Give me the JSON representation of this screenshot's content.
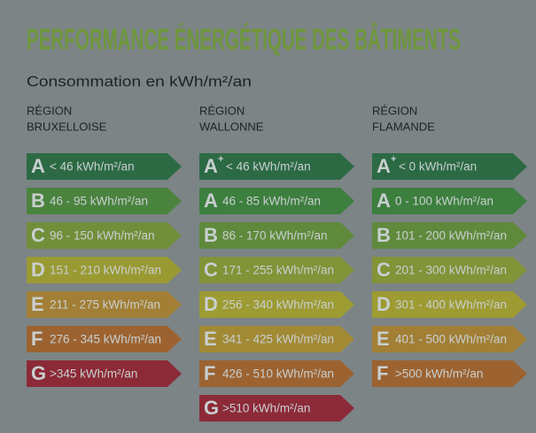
{
  "header": {
    "title": "PERFORMANCE ÉNERGÉTIQUE DES BÂTIMENTS",
    "subtitle": "Consommation en kWh/m²/an"
  },
  "columns": [
    {
      "region": [
        "RÉGION",
        "BRUXELLOISE"
      ],
      "rows": [
        {
          "letter": "A",
          "label": "< 46 kWh/m²/an",
          "color": "#2c6a44"
        },
        {
          "letter": "B",
          "label": "46 - 95 kWh/m²/an",
          "color": "#4a833e"
        },
        {
          "letter": "C",
          "label": "96 - 150 kWh/m²/an",
          "color": "#718f3a"
        },
        {
          "letter": "D",
          "label": "151 - 210 kWh/m²/an",
          "color": "#9a9a33"
        },
        {
          "letter": "E",
          "label": "211 - 275 kWh/m²/an",
          "color": "#a27f35"
        },
        {
          "letter": "F",
          "label": "276 - 345 kWh/m²/an",
          "color": "#9c6331"
        },
        {
          "letter": "G",
          "label": ">345 kWh/m²/an",
          "color": "#8c2a37"
        }
      ]
    },
    {
      "region": [
        "RÉGION",
        "WALLONNE"
      ],
      "rows": [
        {
          "letter": "A",
          "sup": "+",
          "label": "< 46 kWh/m²/an",
          "color": "#2c6a44"
        },
        {
          "letter": "A",
          "label": "46 - 85 kWh/m²/an",
          "color": "#3d7f3e"
        },
        {
          "letter": "B",
          "label": "86 - 170 kWh/m²/an",
          "color": "#5f8a3c"
        },
        {
          "letter": "C",
          "label": "171 - 255 kWh/m²/an",
          "color": "#829338"
        },
        {
          "letter": "D",
          "label": "256 - 340 kWh/m²/an",
          "color": "#9d9b32"
        },
        {
          "letter": "E",
          "label": "341 - 425 kWh/m²/an",
          "color": "#a28a35"
        },
        {
          "letter": "F",
          "label": "426 - 510 kWh/m²/an",
          "color": "#9c6331"
        },
        {
          "letter": "G",
          "label": ">510 kWh/m²/an",
          "color": "#8c2a37"
        }
      ]
    },
    {
      "region": [
        "RÉGION",
        "FLAMANDE"
      ],
      "rows": [
        {
          "letter": "A",
          "sup": "+",
          "label": "< 0 kWh/m²/an",
          "color": "#2c6a44"
        },
        {
          "letter": "A",
          "label": "0 - 100 kWh/m²/an",
          "color": "#3d7f3e"
        },
        {
          "letter": "B",
          "label": "101 - 200 kWh/m²/an",
          "color": "#5f8a3c"
        },
        {
          "letter": "C",
          "label": "201 - 300 kWh/m²/an",
          "color": "#829338"
        },
        {
          "letter": "D",
          "label": "301 - 400 kWh/m²/an",
          "color": "#9d9b32"
        },
        {
          "letter": "E",
          "label": "401 - 500 kWh/m²/an",
          "color": "#a27f35"
        },
        {
          "letter": "F",
          "label": ">500 kWh/m²/an",
          "color": "#9c6331"
        }
      ]
    }
  ]
}
